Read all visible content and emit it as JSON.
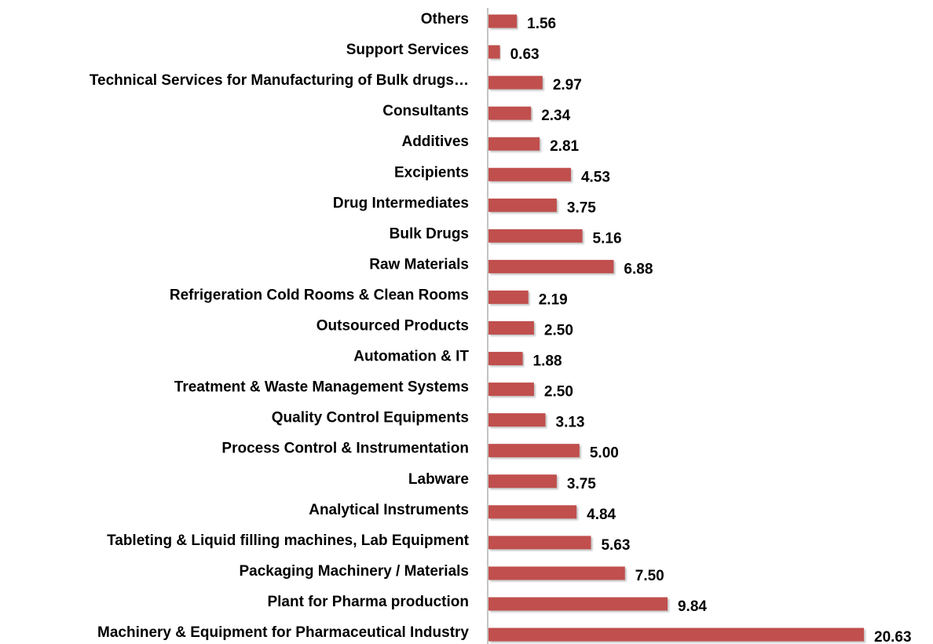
{
  "chart_data": {
    "type": "bar",
    "orientation": "horizontal",
    "color": "#c0504d",
    "categories": [
      "Others",
      "Support Services",
      "Technical Services for Manufacturing of Bulk drugs…",
      "Consultants",
      "Additives",
      "Excipients",
      "Drug Intermediates",
      "Bulk Drugs",
      "Raw Materials",
      "Refrigeration Cold Rooms & Clean Rooms",
      "Outsourced Products",
      "Automation & IT",
      "Treatment & Waste Management Systems",
      "Quality Control Equipments",
      "Process Control & Instrumentation",
      "Labware",
      "Analytical Instruments",
      "Tableting & Liquid filling machines, Lab Equipment",
      "Packaging Machinery / Materials",
      "Plant for Pharma production",
      "Machinery & Equipment for Pharmaceutical Industry"
    ],
    "values": [
      1.56,
      0.63,
      2.97,
      2.34,
      2.81,
      4.53,
      3.75,
      5.16,
      6.88,
      2.19,
      2.5,
      1.88,
      2.5,
      3.13,
      5.0,
      3.75,
      4.84,
      5.63,
      7.5,
      9.84,
      20.63
    ],
    "value_labels": [
      "1.56",
      "0.63",
      "2.97",
      "2.34",
      "2.81",
      "4.53",
      "3.75",
      "5.16",
      "6.88",
      "2.19",
      "2.50",
      "1.88",
      "2.50",
      "3.13",
      "5.00",
      "3.75",
      "4.84",
      "5.63",
      "7.50",
      "9.84",
      "20.63"
    ]
  }
}
